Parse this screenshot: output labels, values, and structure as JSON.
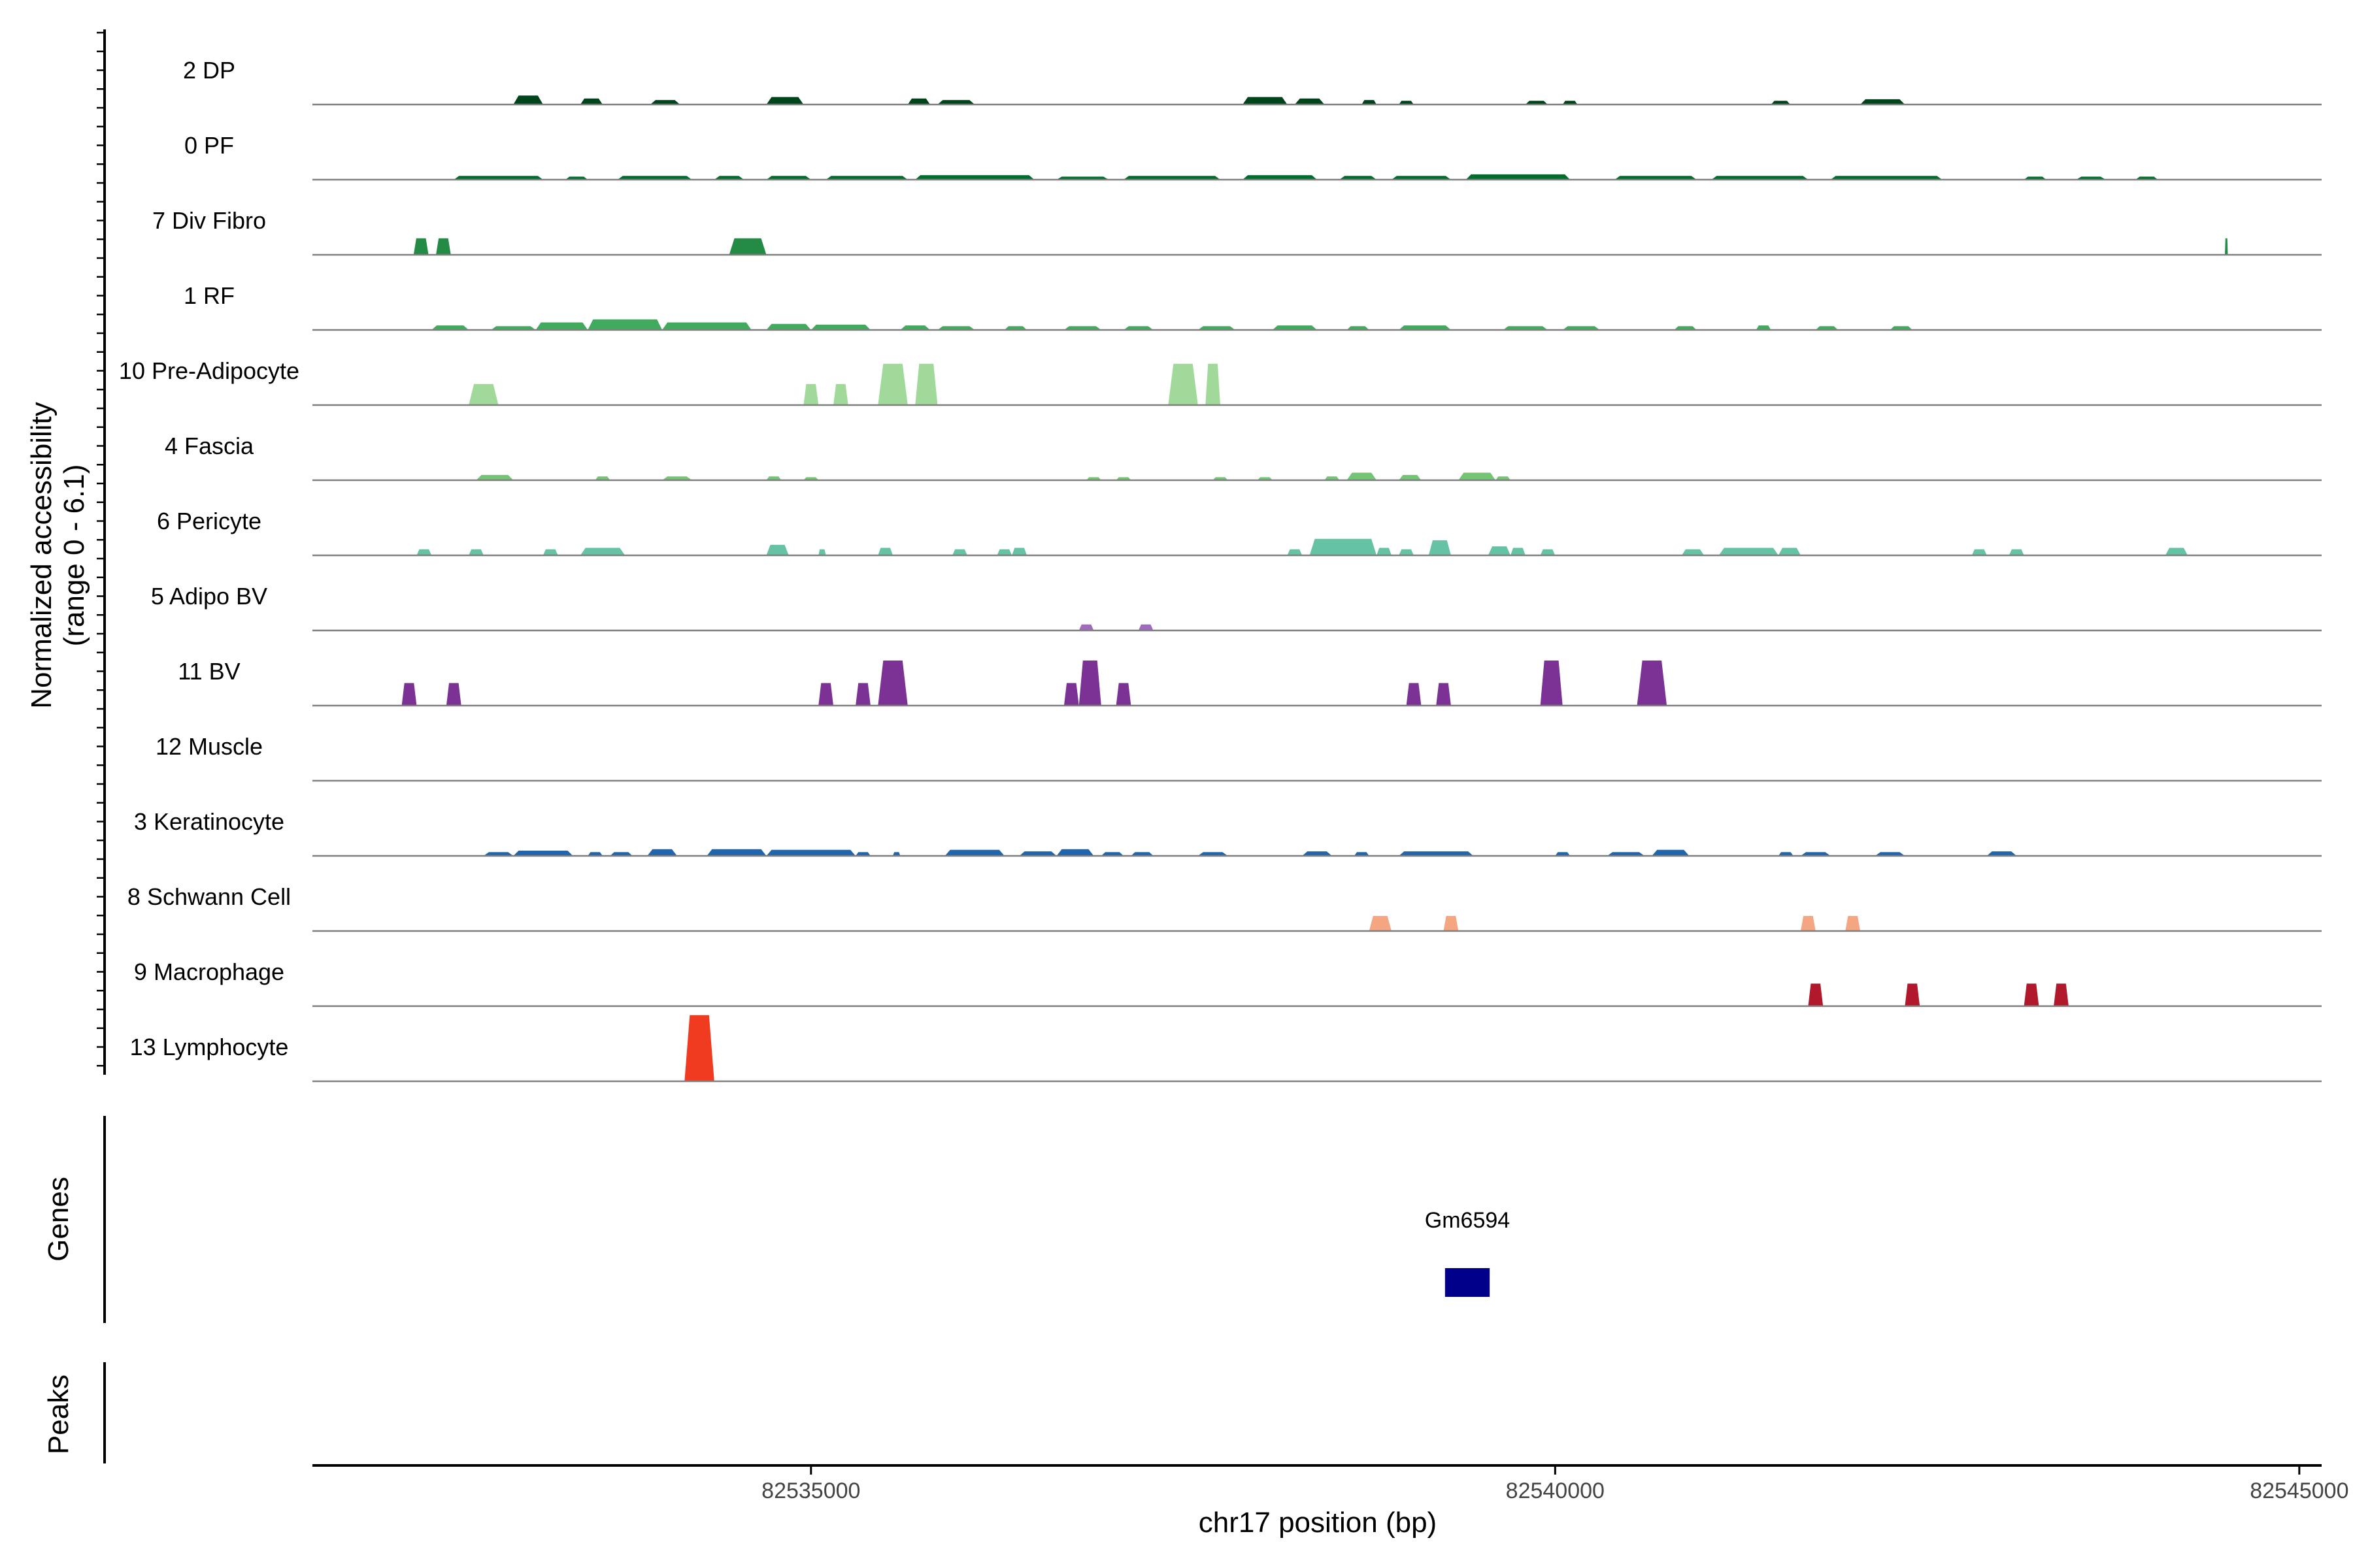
{
  "chart_data": {
    "type": "area",
    "title": "",
    "ylabel_line1": "Normalized accessibility",
    "ylabel_line2": "(range 0 - 6.1)",
    "ylim": [
      0,
      6.1
    ],
    "xlabel": "chr17 position (bp)",
    "xlim": [
      82531650,
      82545150
    ],
    "xticks": [
      82535000,
      82540000,
      82545000
    ],
    "xtick_labels": [
      "82535000",
      "82540000",
      "82545000"
    ],
    "genes_label": "Genes",
    "peaks_label": "Peaks",
    "genes": [
      {
        "name": "Gm6594",
        "start": 82539260,
        "end": 82539560
      }
    ],
    "series": [
      {
        "name": "2 DP",
        "color": "#00441b",
        "regions": [
          [
            82533000,
            82533200,
            0.12
          ],
          [
            82533450,
            82533600,
            0.08
          ],
          [
            82533920,
            82534120,
            0.06
          ],
          [
            82534700,
            82534950,
            0.1
          ],
          [
            82535650,
            82535800,
            0.08
          ],
          [
            82535850,
            82536100,
            0.06
          ],
          [
            82537900,
            82538200,
            0.1
          ],
          [
            82538250,
            82538450,
            0.08
          ],
          [
            82538700,
            82538800,
            0.06
          ],
          [
            82538950,
            82539050,
            0.05
          ],
          [
            82539800,
            82539950,
            0.05
          ],
          [
            82540050,
            82540150,
            0.05
          ],
          [
            82541450,
            82541580,
            0.05
          ],
          [
            82542050,
            82542350,
            0.07
          ]
        ]
      },
      {
        "name": "0 PF",
        "color": "#006d2c",
        "regions": [
          [
            82532600,
            82533200,
            0.05
          ],
          [
            82533350,
            82533500,
            0.04
          ],
          [
            82533700,
            82534200,
            0.05
          ],
          [
            82534350,
            82534550,
            0.05
          ],
          [
            82534700,
            82535000,
            0.05
          ],
          [
            82535100,
            82535650,
            0.05
          ],
          [
            82535700,
            82536500,
            0.06
          ],
          [
            82536650,
            82537000,
            0.04
          ],
          [
            82537100,
            82537750,
            0.05
          ],
          [
            82537900,
            82538400,
            0.06
          ],
          [
            82538550,
            82538800,
            0.05
          ],
          [
            82538900,
            82539300,
            0.05
          ],
          [
            82539400,
            82540100,
            0.07
          ],
          [
            82540400,
            82540950,
            0.05
          ],
          [
            82541050,
            82541700,
            0.05
          ],
          [
            82541850,
            82542600,
            0.05
          ],
          [
            82543150,
            82543300,
            0.04
          ],
          [
            82543500,
            82543700,
            0.04
          ],
          [
            82543900,
            82544050,
            0.04
          ]
        ]
      },
      {
        "name": "7 Div Fibro",
        "color": "#238b45",
        "regions": [
          [
            82532330,
            82532430,
            0.22
          ],
          [
            82532480,
            82532580,
            0.22
          ],
          [
            82534450,
            82534700,
            0.22
          ],
          [
            82544500,
            82544520,
            0.22
          ]
        ]
      },
      {
        "name": "1 RF",
        "color": "#41ab5d",
        "regions": [
          [
            82532450,
            82532700,
            0.06
          ],
          [
            82532850,
            82533150,
            0.05
          ],
          [
            82533150,
            82533500,
            0.1
          ],
          [
            82533500,
            82534000,
            0.14
          ],
          [
            82534000,
            82534600,
            0.1
          ],
          [
            82534700,
            82535000,
            0.08
          ],
          [
            82535000,
            82535400,
            0.07
          ],
          [
            82535600,
            82535800,
            0.06
          ],
          [
            82535850,
            82536100,
            0.05
          ],
          [
            82536300,
            82536450,
            0.05
          ],
          [
            82536700,
            82536950,
            0.05
          ],
          [
            82537100,
            82537300,
            0.05
          ],
          [
            82537600,
            82537850,
            0.05
          ],
          [
            82538100,
            82538400,
            0.06
          ],
          [
            82538600,
            82538750,
            0.05
          ],
          [
            82538950,
            82539300,
            0.06
          ],
          [
            82539650,
            82539950,
            0.05
          ],
          [
            82540050,
            82540300,
            0.05
          ],
          [
            82540800,
            82540950,
            0.05
          ],
          [
            82541350,
            82541450,
            0.06
          ],
          [
            82541750,
            82541900,
            0.05
          ],
          [
            82542250,
            82542400,
            0.05
          ]
        ]
      },
      {
        "name": "10 Pre-Adipocyte",
        "color": "#a1d99b",
        "regions": [
          [
            82532700,
            82532900,
            0.28
          ],
          [
            82534950,
            82535050,
            0.28
          ],
          [
            82535150,
            82535250,
            0.28
          ],
          [
            82535450,
            82535650,
            0.55
          ],
          [
            82535700,
            82535850,
            0.55
          ],
          [
            82537400,
            82537600,
            0.55
          ],
          [
            82537650,
            82537750,
            0.55
          ]
        ]
      },
      {
        "name": "4 Fascia",
        "color": "#74c476",
        "regions": [
          [
            82532750,
            82533000,
            0.07
          ],
          [
            82533550,
            82533650,
            0.05
          ],
          [
            82534000,
            82534200,
            0.05
          ],
          [
            82534700,
            82534800,
            0.05
          ],
          [
            82534950,
            82535050,
            0.04
          ],
          [
            82536850,
            82536950,
            0.04
          ],
          [
            82537050,
            82537150,
            0.04
          ],
          [
            82537700,
            82537800,
            0.04
          ],
          [
            82538000,
            82538100,
            0.04
          ],
          [
            82538450,
            82538550,
            0.05
          ],
          [
            82538600,
            82538800,
            0.1
          ],
          [
            82538950,
            82539100,
            0.07
          ],
          [
            82539350,
            82539600,
            0.1
          ],
          [
            82539600,
            82539700,
            0.05
          ]
        ]
      },
      {
        "name": "6 Pericyte",
        "color": "#66c2a4",
        "regions": [
          [
            82532350,
            82532450,
            0.08
          ],
          [
            82532700,
            82532800,
            0.08
          ],
          [
            82533200,
            82533300,
            0.08
          ],
          [
            82533450,
            82533750,
            0.1
          ],
          [
            82534700,
            82534850,
            0.14
          ],
          [
            82535050,
            82535100,
            0.08
          ],
          [
            82535450,
            82535550,
            0.1
          ],
          [
            82535950,
            82536050,
            0.08
          ],
          [
            82536250,
            82536350,
            0.08
          ],
          [
            82536350,
            82536450,
            0.1
          ],
          [
            82538200,
            82538300,
            0.08
          ],
          [
            82538350,
            82538800,
            0.22
          ],
          [
            82538800,
            82538900,
            0.1
          ],
          [
            82538950,
            82539050,
            0.08
          ],
          [
            82539150,
            82539300,
            0.2
          ],
          [
            82539550,
            82539700,
            0.12
          ],
          [
            82539700,
            82539800,
            0.1
          ],
          [
            82539900,
            82540000,
            0.08
          ],
          [
            82540850,
            82541000,
            0.08
          ],
          [
            82541100,
            82541500,
            0.1
          ],
          [
            82541500,
            82541650,
            0.1
          ],
          [
            82542800,
            82542900,
            0.08
          ],
          [
            82543050,
            82543150,
            0.08
          ],
          [
            82544100,
            82544250,
            0.1
          ]
        ]
      },
      {
        "name": "5 Adipo BV",
        "color": "#9e6bbd",
        "regions": [
          [
            82536800,
            82536900,
            0.08
          ],
          [
            82537200,
            82537300,
            0.08
          ]
        ]
      },
      {
        "name": "11 BV",
        "color": "#7b3294",
        "regions": [
          [
            82532250,
            82532350,
            0.3
          ],
          [
            82532550,
            82532650,
            0.3
          ],
          [
            82535050,
            82535150,
            0.3
          ],
          [
            82535300,
            82535400,
            0.3
          ],
          [
            82535450,
            82535650,
            0.6
          ],
          [
            82536700,
            82536800,
            0.3
          ],
          [
            82536800,
            82536950,
            0.6
          ],
          [
            82537050,
            82537150,
            0.3
          ],
          [
            82539000,
            82539100,
            0.3
          ],
          [
            82539200,
            82539300,
            0.3
          ],
          [
            82539900,
            82540050,
            0.6
          ],
          [
            82540550,
            82540750,
            0.6
          ]
        ]
      },
      {
        "name": "12 Muscle",
        "color": "#6a51a3",
        "regions": []
      },
      {
        "name": "3 Keratinocyte",
        "color": "#2166ac",
        "regions": [
          [
            82532800,
            82533000,
            0.05
          ],
          [
            82533000,
            82533400,
            0.07
          ],
          [
            82533500,
            82533600,
            0.05
          ],
          [
            82533650,
            82533800,
            0.05
          ],
          [
            82533900,
            82534100,
            0.09
          ],
          [
            82534300,
            82534700,
            0.09
          ],
          [
            82534700,
            82535300,
            0.08
          ],
          [
            82535300,
            82535400,
            0.05
          ],
          [
            82535550,
            82535600,
            0.05
          ],
          [
            82535900,
            82536300,
            0.08
          ],
          [
            82536400,
            82536650,
            0.06
          ],
          [
            82536650,
            82536900,
            0.09
          ],
          [
            82536950,
            82537100,
            0.05
          ],
          [
            82537150,
            82537300,
            0.05
          ],
          [
            82537600,
            82537800,
            0.05
          ],
          [
            82538300,
            82538500,
            0.06
          ],
          [
            82538650,
            82538750,
            0.05
          ],
          [
            82538950,
            82539450,
            0.06
          ],
          [
            82540000,
            82540100,
            0.05
          ],
          [
            82540350,
            82540600,
            0.05
          ],
          [
            82540650,
            82540900,
            0.08
          ],
          [
            82541500,
            82541600,
            0.05
          ],
          [
            82541650,
            82541850,
            0.05
          ],
          [
            82542150,
            82542350,
            0.05
          ],
          [
            82542900,
            82543100,
            0.06
          ]
        ]
      },
      {
        "name": "8 Schwann Cell",
        "color": "#f4a582",
        "regions": [
          [
            82538750,
            82538900,
            0.2
          ],
          [
            82539250,
            82539350,
            0.2
          ],
          [
            82541650,
            82541750,
            0.2
          ],
          [
            82541950,
            82542050,
            0.2
          ]
        ]
      },
      {
        "name": "9 Macrophage",
        "color": "#b2182b",
        "regions": [
          [
            82541700,
            82541800,
            0.3
          ],
          [
            82542350,
            82542450,
            0.3
          ],
          [
            82543150,
            82543250,
            0.3
          ],
          [
            82543350,
            82543450,
            0.3
          ]
        ]
      },
      {
        "name": "13 Lymphocyte",
        "color": "#f03b20",
        "regions": [
          [
            82534150,
            82534350,
            0.88
          ]
        ]
      }
    ]
  }
}
